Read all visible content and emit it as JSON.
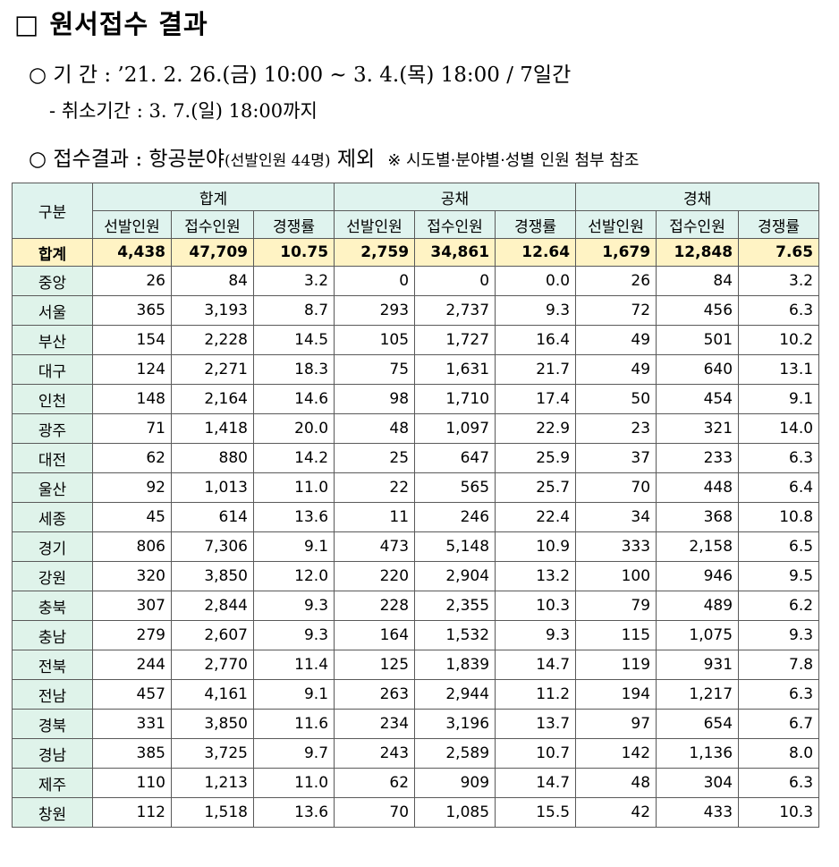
{
  "heading": "□ 원서접수 결과",
  "period": {
    "text": "○ 기      간 : ’21. 2. 26.(금) 10:00 ~ 3. 4.(목) 18:00 / 7일간"
  },
  "cancel": {
    "text": "- 취소기간 : 3. 7.(일) 18:00까지"
  },
  "result": {
    "prefix": "○ 접수결과 : 항공분야",
    "note": "(선발인원 44명)",
    "suffix": " 제외",
    "reference": "※ 시도별·분야별·성별 인원 첨부 참조"
  },
  "table": {
    "corner": "구분",
    "groups": [
      "합계",
      "공채",
      "경채"
    ],
    "subheaders": [
      "선발인원",
      "접수인원",
      "경쟁률",
      "선발인원",
      "접수인원",
      "경쟁률",
      "선발인원",
      "접수인원",
      "경쟁률"
    ],
    "total": {
      "label": "합계",
      "values": [
        "4,438",
        "47,709",
        "10.75",
        "2,759",
        "34,861",
        "12.64",
        "1,679",
        "12,848",
        "7.65"
      ]
    },
    "rows": [
      {
        "label": "중앙",
        "values": [
          "26",
          "84",
          "3.2",
          "0",
          "0",
          "0.0",
          "26",
          "84",
          "3.2"
        ]
      },
      {
        "label": "서울",
        "values": [
          "365",
          "3,193",
          "8.7",
          "293",
          "2,737",
          "9.3",
          "72",
          "456",
          "6.3"
        ]
      },
      {
        "label": "부산",
        "values": [
          "154",
          "2,228",
          "14.5",
          "105",
          "1,727",
          "16.4",
          "49",
          "501",
          "10.2"
        ]
      },
      {
        "label": "대구",
        "values": [
          "124",
          "2,271",
          "18.3",
          "75",
          "1,631",
          "21.7",
          "49",
          "640",
          "13.1"
        ]
      },
      {
        "label": "인천",
        "values": [
          "148",
          "2,164",
          "14.6",
          "98",
          "1,710",
          "17.4",
          "50",
          "454",
          "9.1"
        ]
      },
      {
        "label": "광주",
        "values": [
          "71",
          "1,418",
          "20.0",
          "48",
          "1,097",
          "22.9",
          "23",
          "321",
          "14.0"
        ]
      },
      {
        "label": "대전",
        "values": [
          "62",
          "880",
          "14.2",
          "25",
          "647",
          "25.9",
          "37",
          "233",
          "6.3"
        ]
      },
      {
        "label": "울산",
        "values": [
          "92",
          "1,013",
          "11.0",
          "22",
          "565",
          "25.7",
          "70",
          "448",
          "6.4"
        ]
      },
      {
        "label": "세종",
        "values": [
          "45",
          "614",
          "13.6",
          "11",
          "246",
          "22.4",
          "34",
          "368",
          "10.8"
        ]
      },
      {
        "label": "경기",
        "values": [
          "806",
          "7,306",
          "9.1",
          "473",
          "5,148",
          "10.9",
          "333",
          "2,158",
          "6.5"
        ]
      },
      {
        "label": "강원",
        "values": [
          "320",
          "3,850",
          "12.0",
          "220",
          "2,904",
          "13.2",
          "100",
          "946",
          "9.5"
        ]
      },
      {
        "label": "충북",
        "values": [
          "307",
          "2,844",
          "9.3",
          "228",
          "2,355",
          "10.3",
          "79",
          "489",
          "6.2"
        ]
      },
      {
        "label": "충남",
        "values": [
          "279",
          "2,607",
          "9.3",
          "164",
          "1,532",
          "9.3",
          "115",
          "1,075",
          "9.3"
        ]
      },
      {
        "label": "전북",
        "values": [
          "244",
          "2,770",
          "11.4",
          "125",
          "1,839",
          "14.7",
          "119",
          "931",
          "7.8"
        ]
      },
      {
        "label": "전남",
        "values": [
          "457",
          "4,161",
          "9.1",
          "263",
          "2,944",
          "11.2",
          "194",
          "1,217",
          "6.3"
        ]
      },
      {
        "label": "경북",
        "values": [
          "331",
          "3,850",
          "11.6",
          "234",
          "3,196",
          "13.7",
          "97",
          "654",
          "6.7"
        ]
      },
      {
        "label": "경남",
        "values": [
          "385",
          "3,725",
          "9.7",
          "243",
          "2,589",
          "10.7",
          "142",
          "1,136",
          "8.0"
        ]
      },
      {
        "label": "제주",
        "values": [
          "110",
          "1,213",
          "11.0",
          "62",
          "909",
          "14.7",
          "48",
          "304",
          "6.3"
        ]
      },
      {
        "label": "창원",
        "values": [
          "112",
          "1,518",
          "13.6",
          "70",
          "1,085",
          "15.5",
          "42",
          "433",
          "10.3"
        ]
      }
    ]
  }
}
